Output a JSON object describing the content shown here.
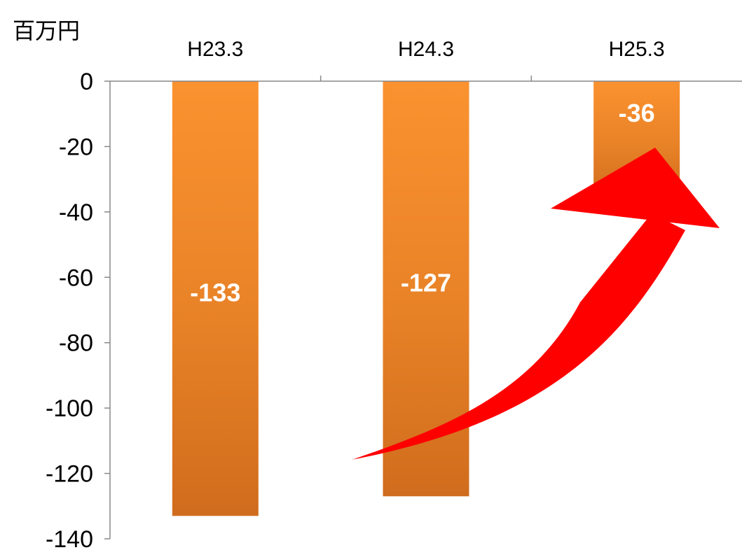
{
  "chart_data": {
    "type": "bar",
    "unit_label": "百万円",
    "categories": [
      "H23.3",
      "H24.3",
      "H25.3"
    ],
    "values": [
      -133,
      -127,
      -36
    ],
    "data_labels": [
      "-133",
      "-127",
      "-36"
    ],
    "ylim": [
      -140,
      0
    ],
    "yticks": [
      0,
      -20,
      -40,
      -60,
      -80,
      -100,
      -120,
      -140
    ],
    "ytick_labels": [
      "0",
      "-20",
      "-40",
      "-60",
      "-80",
      "-100",
      "-120",
      "-140"
    ],
    "x_axis_position": "top",
    "grid": false,
    "legend": "none",
    "colors": {
      "bar_top": "#fb9230",
      "bar_bottom": "#d06c1d",
      "arrow": "#ff0000",
      "axis": "#888888"
    },
    "annotation": {
      "type": "arrow",
      "direction": "upward-curve",
      "from_category": "H24.3",
      "to_category": "H25.3"
    }
  }
}
